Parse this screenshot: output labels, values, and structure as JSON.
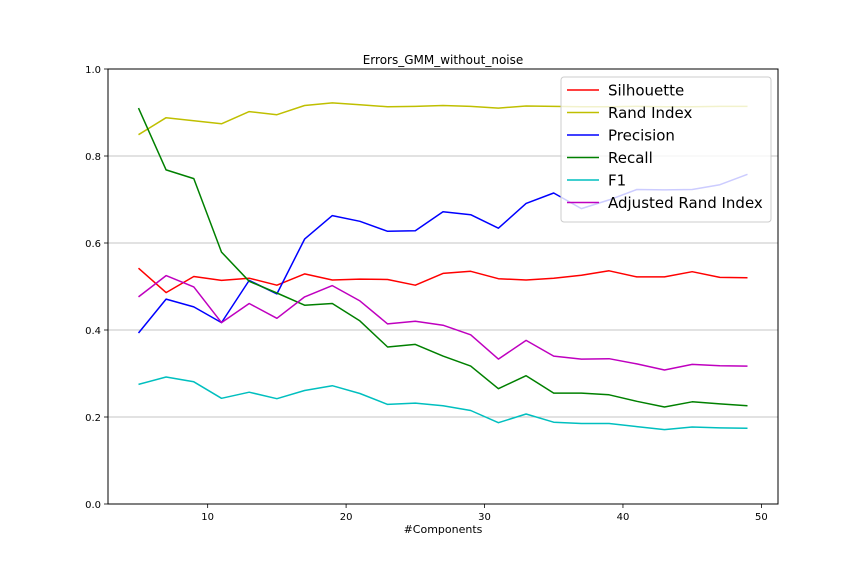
{
  "chart_data": {
    "type": "line",
    "title": "Errors_GMM_without_noise",
    "xlabel": "#Components",
    "ylabel": "",
    "xlim": [
      2.8,
      51.2
    ],
    "ylim": [
      0.0,
      1.0
    ],
    "x_ticks": [
      10,
      20,
      30,
      40,
      50
    ],
    "y_ticks": [
      0.0,
      0.2,
      0.4,
      0.6,
      0.8,
      1.0
    ],
    "y_tick_labels": [
      "0.0",
      "0.2",
      "0.4",
      "0.6",
      "0.8",
      "1.0"
    ],
    "grid": "horizontal",
    "legend_position": "top-right",
    "x": [
      5,
      7,
      9,
      11,
      13,
      15,
      17,
      19,
      21,
      23,
      25,
      27,
      29,
      31,
      33,
      35,
      37,
      39,
      41,
      43,
      45,
      47,
      49
    ],
    "series": [
      {
        "name": "Silhouette",
        "color": "#ff0000",
        "values": [
          0.542,
          0.486,
          0.523,
          0.514,
          0.519,
          0.503,
          0.529,
          0.515,
          0.517,
          0.516,
          0.503,
          0.53,
          0.535,
          0.518,
          0.515,
          0.519,
          0.526,
          0.536,
          0.522,
          0.522,
          0.534,
          0.521,
          0.52
        ]
      },
      {
        "name": "Rand Index",
        "color": "#bfbf00",
        "values": [
          0.849,
          0.888,
          0.881,
          0.874,
          0.902,
          0.895,
          0.916,
          0.922,
          0.918,
          0.913,
          0.914,
          0.916,
          0.914,
          0.91,
          0.915,
          0.914,
          0.913,
          0.913,
          0.914,
          0.913,
          0.913,
          0.914,
          0.914
        ]
      },
      {
        "name": "Precision",
        "color": "#0000ff",
        "values": [
          0.393,
          0.471,
          0.453,
          0.417,
          0.514,
          0.483,
          0.609,
          0.663,
          0.65,
          0.627,
          0.628,
          0.672,
          0.665,
          0.634,
          0.691,
          0.715,
          0.679,
          0.699,
          0.723,
          0.722,
          0.723,
          0.734,
          0.758
        ]
      },
      {
        "name": "Recall",
        "color": "#008000",
        "values": [
          0.91,
          0.768,
          0.748,
          0.579,
          0.512,
          0.485,
          0.457,
          0.461,
          0.421,
          0.361,
          0.367,
          0.34,
          0.317,
          0.265,
          0.295,
          0.255,
          0.255,
          0.251,
          0.236,
          0.223,
          0.235,
          0.23,
          0.226
        ]
      },
      {
        "name": "F1",
        "color": "#00bfbf",
        "values": [
          0.275,
          0.292,
          0.281,
          0.243,
          0.257,
          0.242,
          0.261,
          0.272,
          0.254,
          0.229,
          0.232,
          0.226,
          0.215,
          0.187,
          0.207,
          0.188,
          0.185,
          0.185,
          0.178,
          0.171,
          0.177,
          0.175,
          0.174
        ]
      },
      {
        "name": "Adjusted Rand Index",
        "color": "#bf00bf",
        "values": [
          0.476,
          0.525,
          0.499,
          0.417,
          0.461,
          0.427,
          0.476,
          0.502,
          0.467,
          0.414,
          0.42,
          0.411,
          0.389,
          0.333,
          0.376,
          0.34,
          0.333,
          0.334,
          0.322,
          0.308,
          0.321,
          0.318,
          0.317
        ]
      }
    ]
  }
}
